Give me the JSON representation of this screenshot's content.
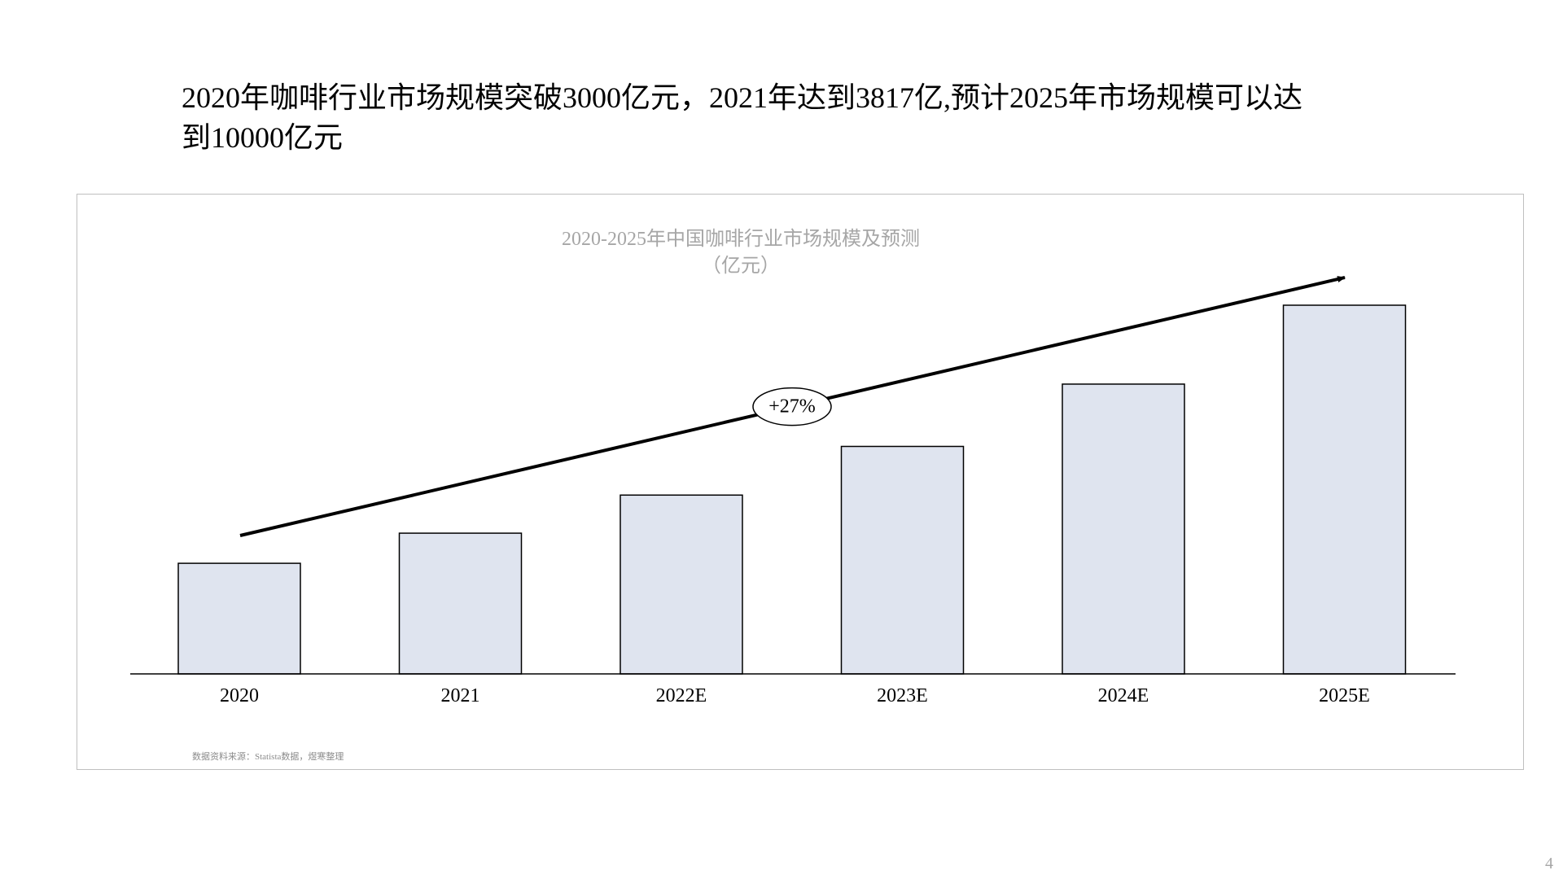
{
  "headline": {
    "line1": "2020年咖啡行业市场规模突破3000亿元，2021年达到3817亿,预计2025年市场规模可以达",
    "line2": "到10000亿元"
  },
  "chart_data": {
    "type": "bar",
    "title": "2020-2025年中国咖啡行业市场规模及预测",
    "subtitle": "（亿元）",
    "categories": [
      "2020",
      "2021",
      "2022E",
      "2023E",
      "2024E",
      "2025E"
    ],
    "values": [
      3000,
      3817,
      4850,
      6170,
      7860,
      10000
    ],
    "ylim": [
      0,
      10000
    ],
    "grid": false,
    "legend": "none",
    "bar_color": "#dfe4ef",
    "bar_border": "#000000",
    "trend_annotation": "+27%"
  },
  "source_note": "数据资料来源：Statista数据，煜寒整理",
  "page_number": "4"
}
